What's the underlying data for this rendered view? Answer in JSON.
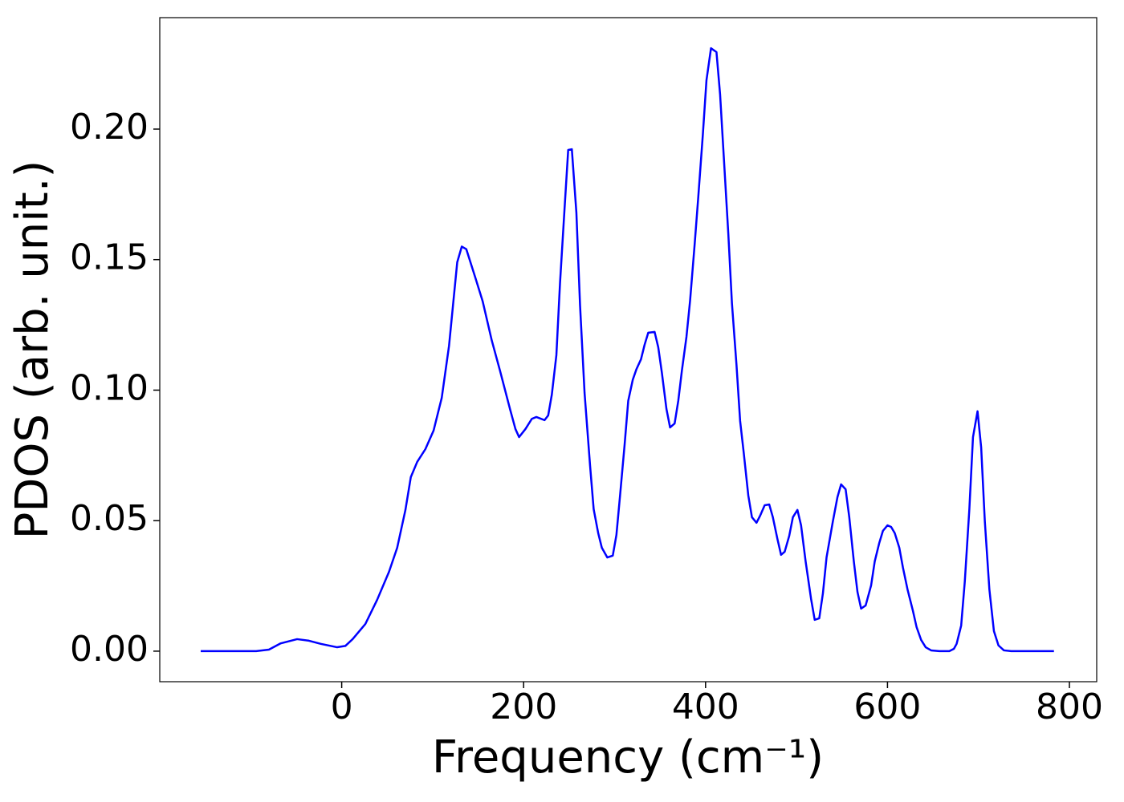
{
  "chart_data": {
    "type": "line",
    "x_label": "Frequency (cm⁻¹)",
    "y_label": "PDOS (arb. unit.)",
    "color": "#0000ff",
    "xlim": [
      -200,
      830
    ],
    "ylim": [
      -0.0117,
      0.2427
    ],
    "xticks": [
      0,
      200,
      400,
      600,
      800
    ],
    "yticks": [
      {
        "value": 0,
        "label": "0.00"
      },
      {
        "value": 0.05,
        "label": "0.05"
      },
      {
        "value": 0.1,
        "label": "0.10"
      },
      {
        "value": 0.15,
        "label": "0.15"
      },
      {
        "value": 0.2,
        "label": "0.20"
      }
    ],
    "x": [
      -155,
      -94,
      -80,
      -67,
      -49,
      -36,
      -23,
      -5,
      4,
      12,
      26,
      39,
      52,
      61,
      70,
      76,
      83,
      92,
      101,
      110,
      118,
      127,
      132,
      137,
      147,
      155,
      165,
      174,
      185,
      191,
      195,
      202,
      209,
      214,
      223,
      227,
      231,
      236,
      240,
      245,
      249,
      253,
      258,
      262,
      267,
      273,
      277,
      282,
      286,
      292,
      298,
      302,
      306,
      311,
      315,
      320,
      324,
      329,
      333,
      337,
      344,
      348,
      352,
      357,
      361,
      366,
      370,
      374,
      379,
      383,
      388,
      392,
      397,
      401,
      406,
      412,
      416,
      420,
      425,
      429,
      434,
      438,
      442,
      447,
      451,
      456,
      460,
      465,
      470,
      474,
      479,
      483,
      487,
      492,
      496,
      501,
      505,
      510,
      516,
      520,
      525,
      529,
      533,
      540,
      545,
      549,
      554,
      558,
      563,
      567,
      571,
      576,
      582,
      586,
      591,
      595,
      600,
      604,
      608,
      613,
      617,
      622,
      628,
      632,
      637,
      642,
      648,
      657,
      668,
      673,
      676,
      681,
      685,
      690,
      694,
      699,
      703,
      707,
      712,
      717,
      722,
      728,
      736,
      783
    ],
    "values": [
      0,
      0,
      0.0006,
      0.003,
      0.0046,
      0.004,
      0.0028,
      0.0015,
      0.002,
      0.0046,
      0.0104,
      0.0197,
      0.0304,
      0.0396,
      0.054,
      0.0667,
      0.0725,
      0.0774,
      0.0845,
      0.0971,
      0.117,
      0.149,
      0.155,
      0.154,
      0.143,
      0.134,
      0.119,
      0.1075,
      0.0928,
      0.0851,
      0.082,
      0.0851,
      0.089,
      0.0897,
      0.0885,
      0.0903,
      0.0983,
      0.1134,
      0.141,
      0.1696,
      0.192,
      0.1923,
      0.168,
      0.1327,
      0.0989,
      0.0713,
      0.0544,
      0.0452,
      0.0396,
      0.0359,
      0.0366,
      0.0445,
      0.0596,
      0.079,
      0.0959,
      0.104,
      0.108,
      0.1118,
      0.1174,
      0.122,
      0.1223,
      0.1164,
      0.1066,
      0.0928,
      0.0857,
      0.0872,
      0.0959,
      0.1075,
      0.1204,
      0.1343,
      0.1558,
      0.174,
      0.1978,
      0.2187,
      0.231,
      0.2295,
      0.2132,
      0.1896,
      0.16,
      0.1333,
      0.1097,
      0.0882,
      0.0759,
      0.0596,
      0.0513,
      0.0492,
      0.0519,
      0.0559,
      0.0562,
      0.0513,
      0.043,
      0.0369,
      0.0381,
      0.0442,
      0.0513,
      0.0541,
      0.0482,
      0.0344,
      0.02,
      0.012,
      0.0126,
      0.0221,
      0.0359,
      0.0498,
      0.059,
      0.0639,
      0.062,
      0.0513,
      0.0344,
      0.0227,
      0.0163,
      0.0175,
      0.0252,
      0.0344,
      0.0415,
      0.0461,
      0.0482,
      0.0476,
      0.0452,
      0.0396,
      0.032,
      0.0237,
      0.0154,
      0.0092,
      0.0043,
      0.0015,
      0.0003,
      0,
      0,
      0.0009,
      0.0028,
      0.0098,
      0.0267,
      0.0544,
      0.082,
      0.0919,
      0.078,
      0.0498,
      0.0237,
      0.0077,
      0.0022,
      0.0003,
      0,
      0
    ]
  }
}
